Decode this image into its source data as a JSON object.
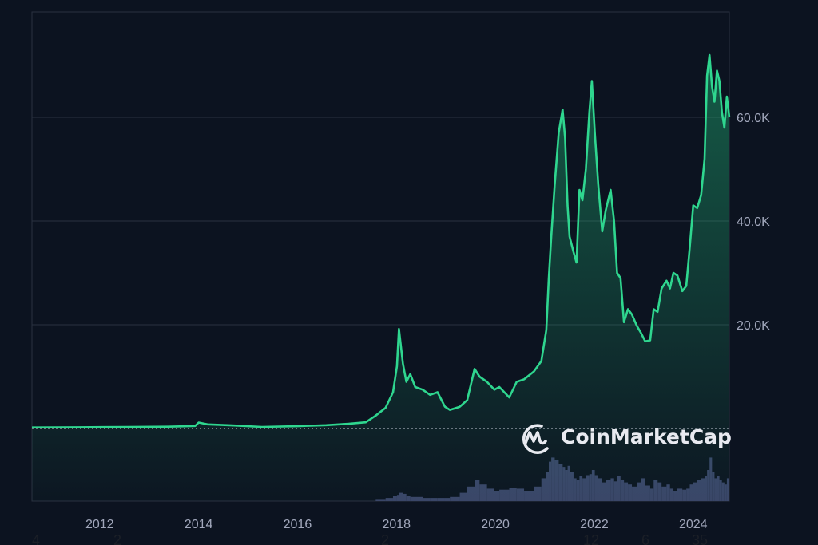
{
  "chart_data": {
    "type": "area",
    "title": "",
    "xlabel": "",
    "ylabel": "",
    "x_ticks": [
      "2012",
      "2014",
      "2016",
      "2018",
      "2020",
      "2022",
      "2024"
    ],
    "y_ticks": [
      "20.0K",
      "40.0K",
      "60.0K"
    ],
    "y_tick_values": [
      20000,
      40000,
      60000
    ],
    "xlim": [
      2010.55,
      2024.65
    ],
    "ylim": [
      0,
      80000
    ],
    "grid": "horizontal",
    "y_axis_position": "right",
    "line_color": "#2fd68f",
    "background": "#0c1320",
    "volume_color": "#3a4468",
    "series": [
      {
        "x": [
          2010.55,
          2011.5,
          2012.5,
          2013.3,
          2013.85,
          2013.92,
          2014.1,
          2014.6,
          2015.2,
          2015.9,
          2016.5,
          2016.95,
          2017.3,
          2017.5,
          2017.7,
          2017.85,
          2017.93,
          2017.97,
          2018.05,
          2018.12,
          2018.2,
          2018.3,
          2018.45,
          2018.6,
          2018.75,
          2018.9,
          2019.0,
          2019.2,
          2019.35,
          2019.5,
          2019.6,
          2019.75,
          2019.9,
          2020.0,
          2020.2,
          2020.35,
          2020.5,
          2020.7,
          2020.85,
          2020.95,
          2021.0,
          2021.05,
          2021.12,
          2021.2,
          2021.28,
          2021.33,
          2021.38,
          2021.42,
          2021.5,
          2021.56,
          2021.62,
          2021.68,
          2021.75,
          2021.82,
          2021.87,
          2021.93,
          2022.0,
          2022.08,
          2022.15,
          2022.25,
          2022.32,
          2022.38,
          2022.45,
          2022.52,
          2022.6,
          2022.68,
          2022.78,
          2022.86,
          2022.95,
          2023.05,
          2023.12,
          2023.2,
          2023.28,
          2023.38,
          2023.45,
          2023.52,
          2023.6,
          2023.7,
          2023.78,
          2023.85,
          2023.92,
          2024.0,
          2024.08,
          2024.15,
          2024.2,
          2024.25,
          2024.3,
          2024.35,
          2024.4,
          2024.45,
          2024.5,
          2024.55,
          2024.6,
          2024.65
        ],
        "y": [
          200,
          250,
          300,
          350,
          500,
          1150,
          800,
          600,
          300,
          450,
          650,
          900,
          1200,
          2500,
          4000,
          7000,
          12000,
          19200,
          12500,
          9000,
          10500,
          8000,
          7500,
          6500,
          7000,
          4200,
          3600,
          4200,
          5500,
          11500,
          10000,
          9000,
          7500,
          8000,
          6000,
          9000,
          9500,
          11000,
          13000,
          19000,
          29000,
          37000,
          47000,
          57000,
          61500,
          56000,
          43000,
          37000,
          34000,
          32000,
          46000,
          44000,
          50000,
          61000,
          67000,
          57000,
          47000,
          38000,
          42000,
          46000,
          40000,
          30000,
          29000,
          20500,
          23000,
          22000,
          19800,
          18500,
          16800,
          17000,
          23000,
          22500,
          27000,
          28500,
          27000,
          30000,
          29500,
          26500,
          27500,
          35000,
          43000,
          42500,
          45000,
          52000,
          68000,
          72000,
          66000,
          63000,
          69000,
          67000,
          61000,
          58000,
          64000,
          60000
        ],
        "volume": [
          0,
          0,
          0,
          0,
          0,
          0,
          0,
          0,
          0,
          0,
          0,
          0,
          0,
          2,
          3,
          5,
          6,
          8,
          7,
          5,
          4,
          4,
          3,
          3,
          3,
          3,
          4,
          8,
          14,
          20,
          16,
          12,
          10,
          11,
          13,
          12,
          10,
          14,
          22,
          28,
          38,
          42,
          40,
          36,
          33,
          30,
          34,
          28,
          22,
          20,
          24,
          22,
          25,
          26,
          30,
          25,
          22,
          18,
          20,
          22,
          19,
          24,
          20,
          18,
          16,
          14,
          18,
          22,
          15,
          12,
          20,
          18,
          14,
          16,
          12,
          10,
          12,
          11,
          12,
          16,
          18,
          20,
          22,
          24,
          30,
          42,
          28,
          22,
          24,
          20,
          18,
          16,
          22,
          18
        ]
      }
    ]
  },
  "watermark": {
    "text": "CoinMarketCap"
  },
  "stray_digits": [
    "4",
    "2",
    "2",
    "12",
    "6",
    "35"
  ]
}
